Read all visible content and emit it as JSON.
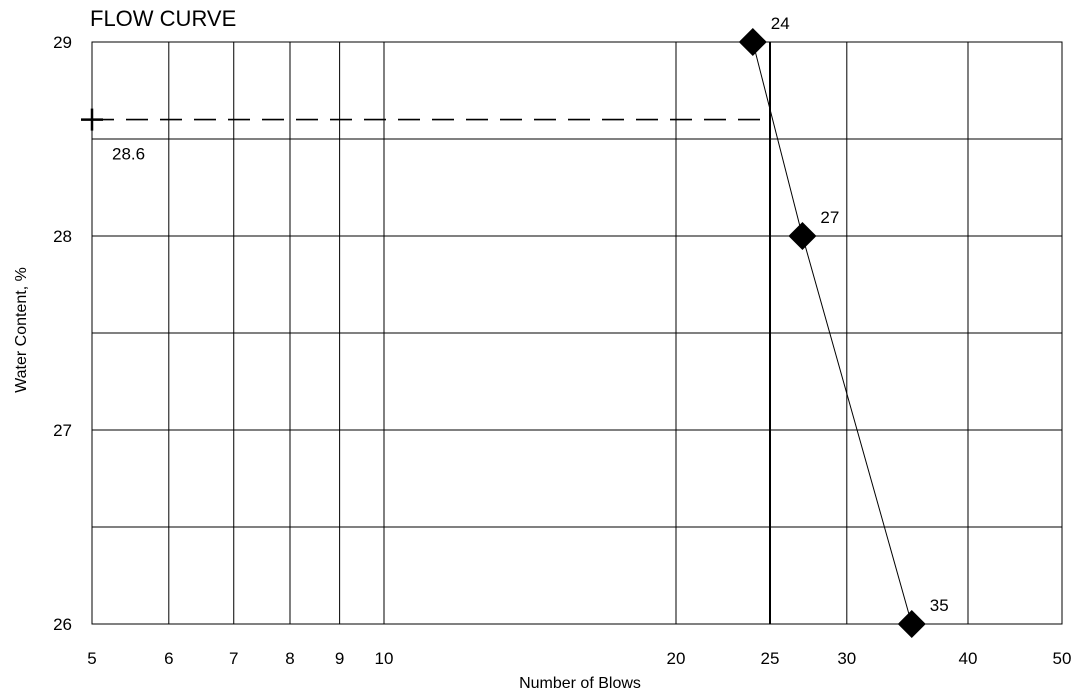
{
  "chart_data": {
    "type": "scatter",
    "title": "FLOW CURVE",
    "xlabel": "Number of Blows",
    "ylabel": "Water Content, %",
    "x_scale": "log",
    "xlim": [
      5,
      50
    ],
    "ylim": [
      26,
      29
    ],
    "x_ticks": [
      5,
      6,
      7,
      8,
      9,
      10,
      20,
      25,
      30,
      40,
      50
    ],
    "y_ticks": [
      26,
      27,
      28,
      29
    ],
    "y_minor_gridlines": [
      26.5,
      27.5,
      28.5
    ],
    "grid": true,
    "series": [
      {
        "points": [
          {
            "x": 24,
            "y": 29,
            "label": "24"
          },
          {
            "x": 27,
            "y": 28,
            "label": "27"
          },
          {
            "x": 35,
            "y": 26,
            "label": "35"
          }
        ]
      }
    ],
    "reference": {
      "x": 25,
      "value": 28.6,
      "label": "28.6"
    }
  }
}
